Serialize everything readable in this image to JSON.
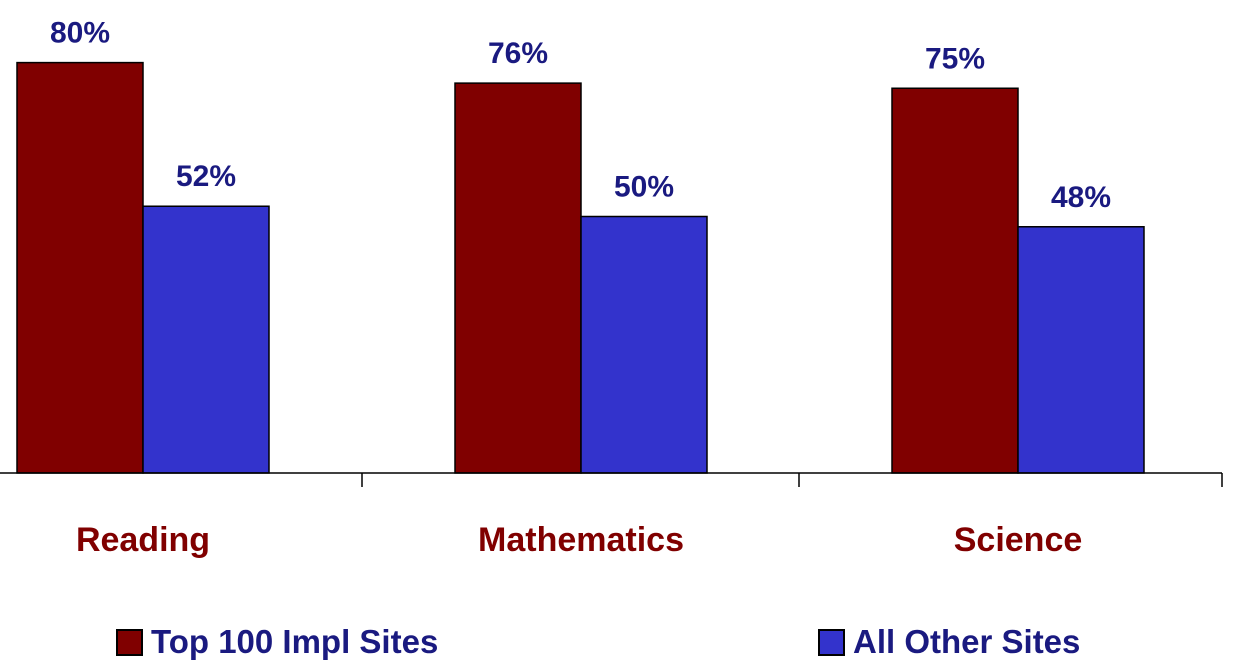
{
  "chart_data": {
    "type": "bar",
    "categories": [
      "Reading",
      "Mathematics",
      "Science"
    ],
    "series": [
      {
        "name": "Top 100 Impl Sites",
        "values": [
          80,
          76,
          75
        ],
        "labels": [
          "80%",
          "76%",
          "75%"
        ],
        "color": "#800000"
      },
      {
        "name": "All Other Sites",
        "values": [
          52,
          50,
          48
        ],
        "labels": [
          "52%",
          "50%",
          "48%"
        ],
        "color": "#3333cc"
      }
    ],
    "ylim": [
      0,
      100
    ],
    "grid": false,
    "legend_position": "bottom",
    "category_label_color": "#800000",
    "data_label_color": "#1a1a80"
  },
  "legend": {
    "items": [
      {
        "label": "Top 100 Impl Sites",
        "color": "#800000"
      },
      {
        "label": "All Other Sites",
        "color": "#3333cc"
      }
    ]
  }
}
